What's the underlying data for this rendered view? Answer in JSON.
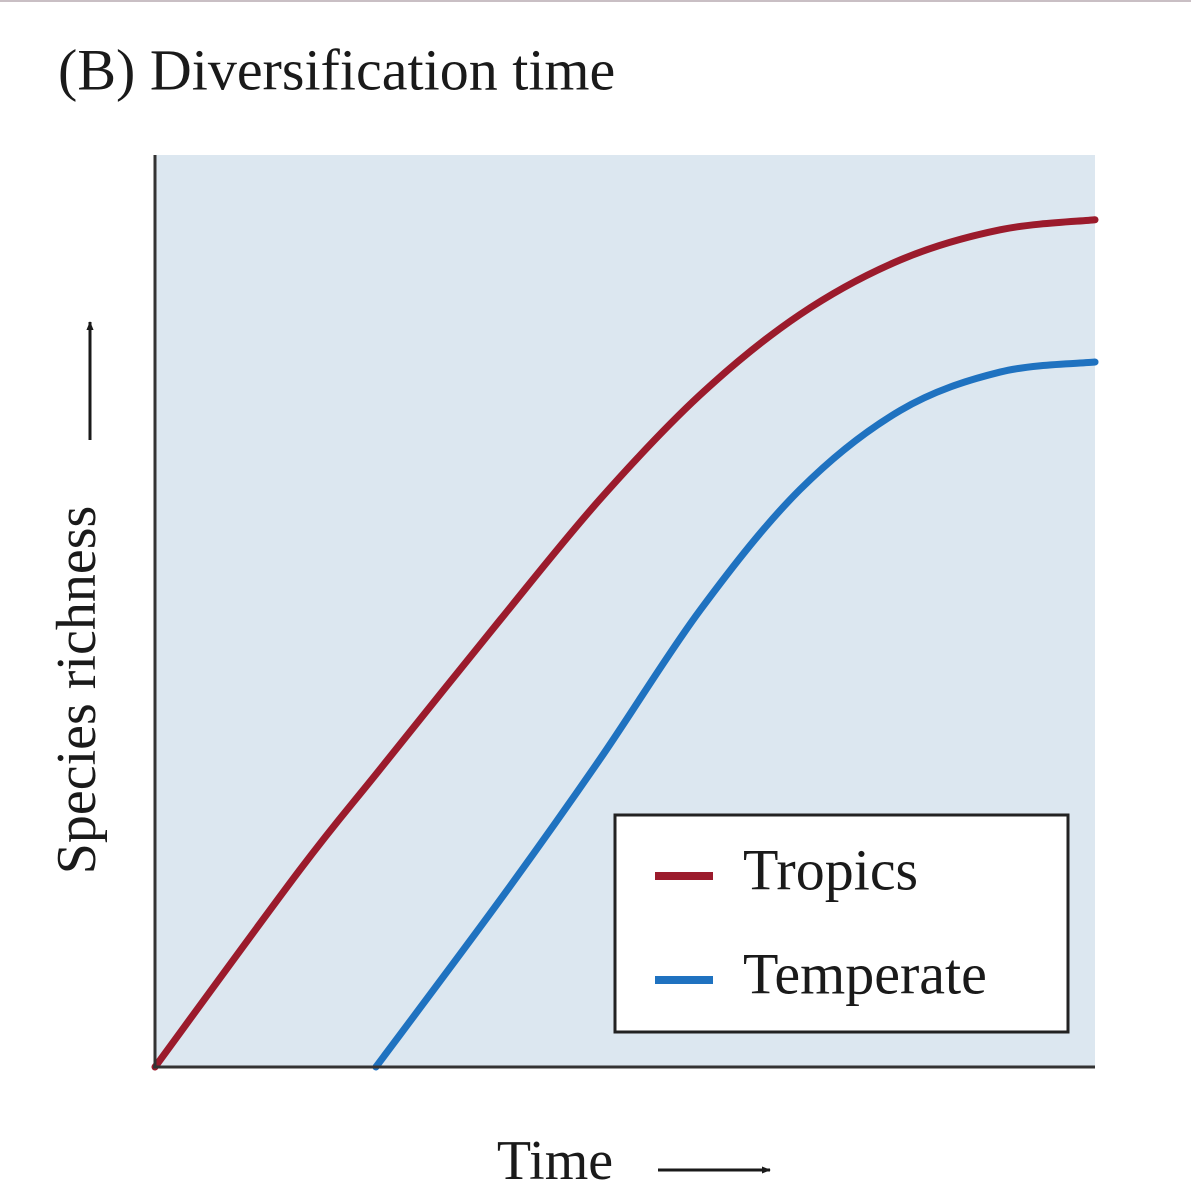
{
  "chart_data": {
    "type": "line",
    "title": "(B)  Diversification time",
    "x_label": "Time",
    "y_label": "Species richness",
    "xlim": [
      0,
      100
    ],
    "ylim": [
      0,
      100
    ],
    "legend": "lower right",
    "plot_background": "#dce7f0",
    "series": [
      {
        "name": "Tropics",
        "color": "#9b1b2c",
        "x": [
          0,
          15.4,
          23.9,
          36.7,
          47.3,
          58.0,
          68.6,
          79.3,
          89.9,
          100
        ],
        "values": [
          0,
          21.6,
          32.6,
          49.0,
          62.2,
          73.7,
          82.5,
          88.5,
          91.8,
          92.9
        ]
      },
      {
        "name": "Temperate",
        "color": "#1f72c0",
        "x": [
          23.5,
          36.7,
          47.3,
          58.0,
          68.6,
          79.3,
          89.9,
          100
        ],
        "values": [
          0,
          18.3,
          33.7,
          50.1,
          63.3,
          72.0,
          76.2,
          77.3
        ]
      }
    ]
  }
}
